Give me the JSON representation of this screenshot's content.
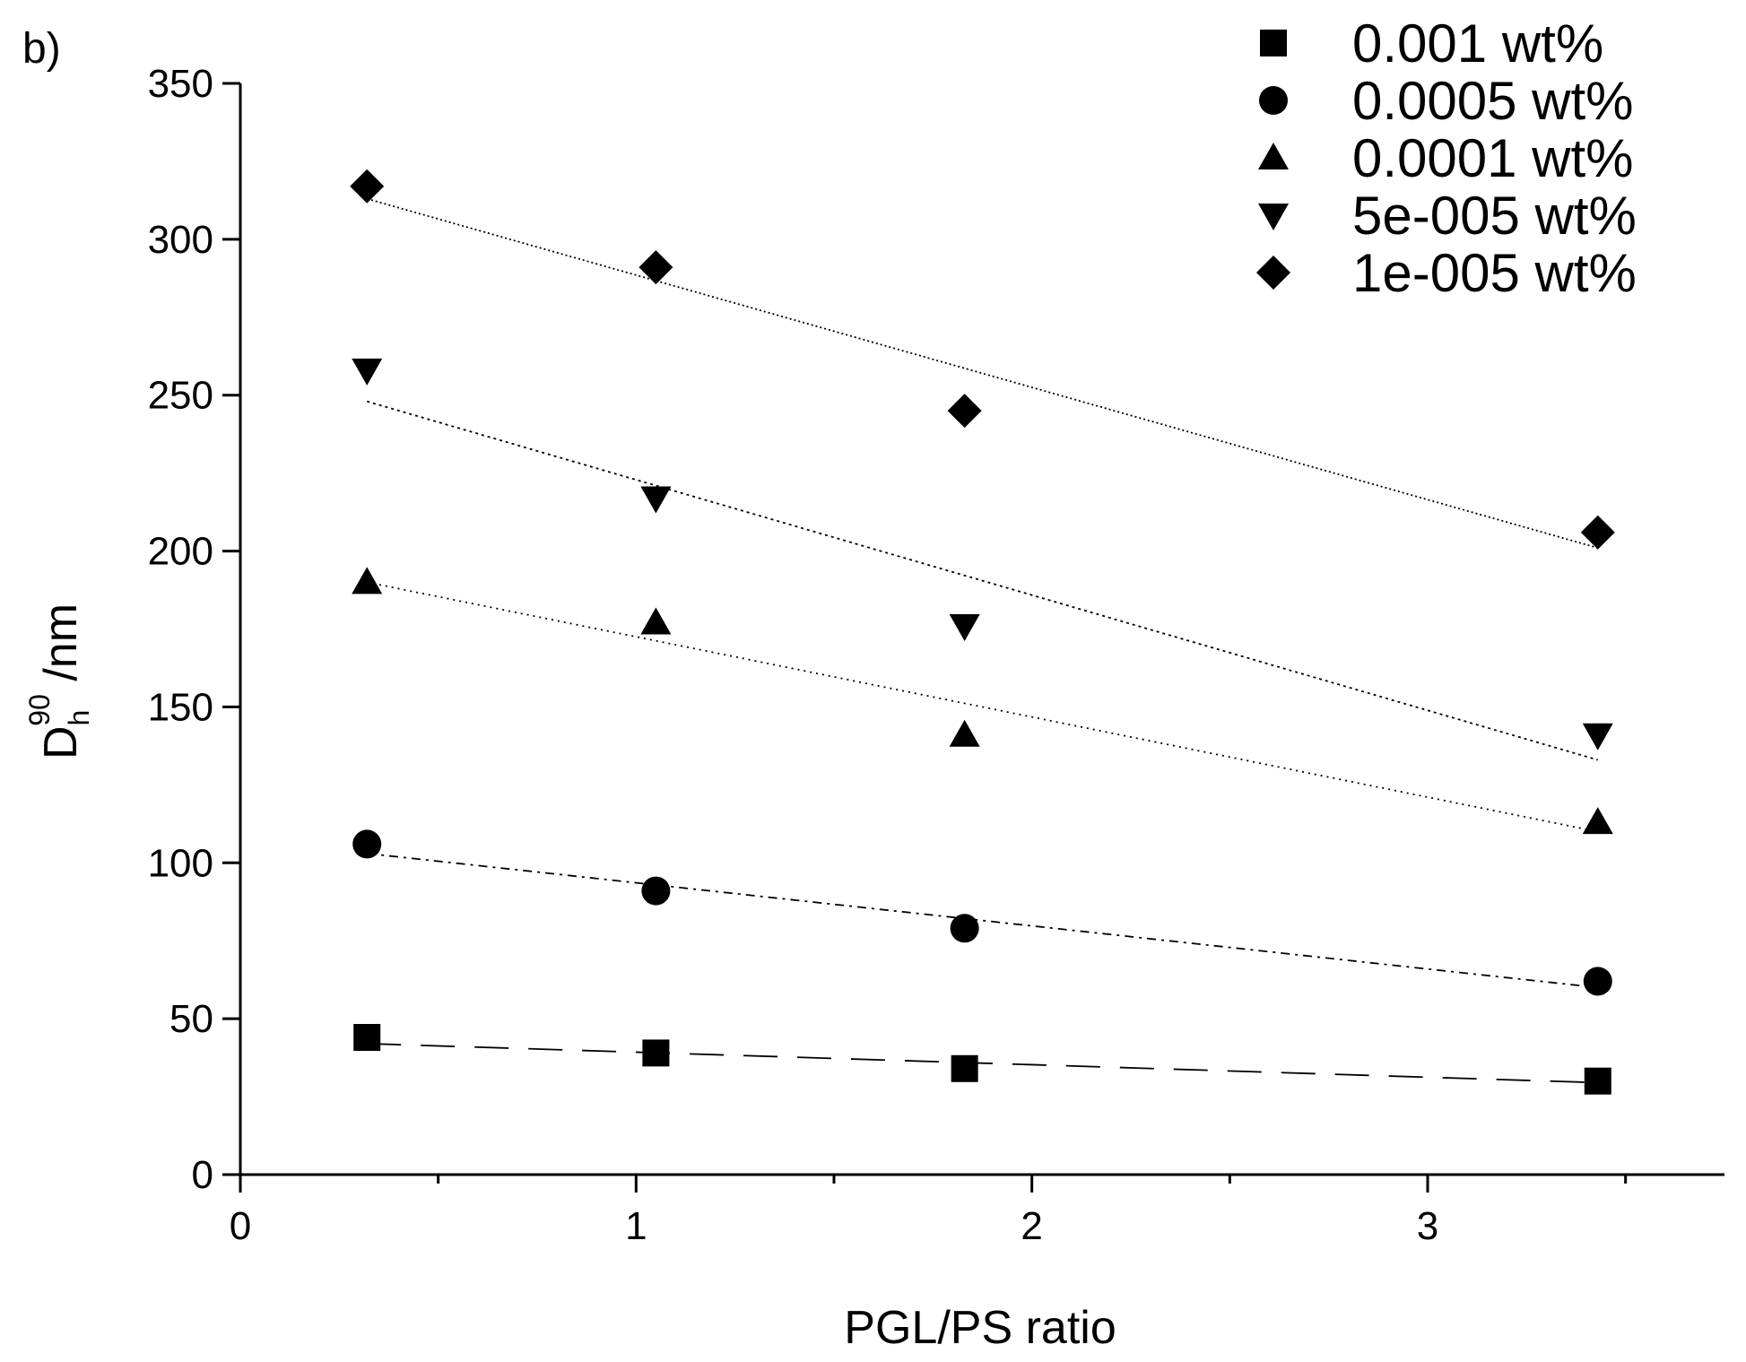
{
  "chart_data": {
    "type": "scatter",
    "panel_label": "b)",
    "xlabel": "PGL/PS ratio",
    "ylabel": {
      "base": "D",
      "subscript": "h",
      "superscript": "90",
      "unit": " /nm"
    },
    "xlim": [
      0,
      3.75
    ],
    "ylim": [
      0,
      350
    ],
    "xticks": [
      0,
      1,
      2,
      3
    ],
    "xticks_minor": [
      0.5,
      1.5,
      2.5,
      3.5
    ],
    "yticks": [
      0,
      50,
      100,
      150,
      200,
      250,
      300,
      350
    ],
    "x": [
      0.32,
      1.05,
      1.83,
      3.43
    ],
    "grid": false,
    "legend_position": "top-right",
    "series": [
      {
        "name": "0.001 wt%",
        "marker": "square",
        "values": [
          44,
          39,
          34,
          30
        ],
        "fit": [
          42,
          29.5
        ],
        "dash": "38,22"
      },
      {
        "name": "0.0005 wt%",
        "marker": "circle",
        "values": [
          106,
          91,
          79,
          62
        ],
        "fit": [
          103,
          60
        ],
        "dash": "10,6,3,6"
      },
      {
        "name": "0.0001 wt%",
        "marker": "triangle-up",
        "values": [
          190,
          177,
          141,
          113
        ],
        "fit": [
          190,
          110
        ],
        "dash": "2,5"
      },
      {
        "name": "5e-005 wt%",
        "marker": "triangle-down",
        "values": [
          258,
          217,
          176,
          141
        ],
        "fit": [
          248,
          133
        ],
        "dash": "3,4"
      },
      {
        "name": "1e-005 wt%",
        "marker": "diamond",
        "values": [
          317,
          291,
          245,
          206
        ],
        "fit": [
          313,
          201
        ],
        "dash": "2,3"
      }
    ]
  }
}
